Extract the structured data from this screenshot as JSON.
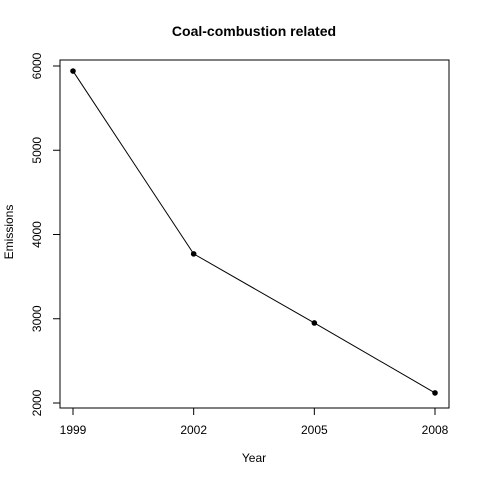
{
  "chart_data": {
    "type": "line",
    "title": "Coal-combustion related",
    "xlabel": "Year",
    "ylabel": "Emissions",
    "x": [
      1999,
      2002,
      2005,
      2008
    ],
    "series": [
      {
        "values": [
          5940,
          3770,
          2950,
          2120
        ]
      }
    ],
    "x_ticks": [
      "1999",
      "2002",
      "2005",
      "2008"
    ],
    "y_ticks": [
      "2000",
      "3000",
      "4000",
      "5000",
      "6000"
    ],
    "xlim": [
      1999,
      2008
    ],
    "ylim": [
      2000,
      6000
    ],
    "grid": false,
    "legend": "none",
    "colors": {
      "line": "#000000",
      "points": "#000000",
      "axes": "#000000",
      "background": "#ffffff"
    }
  }
}
